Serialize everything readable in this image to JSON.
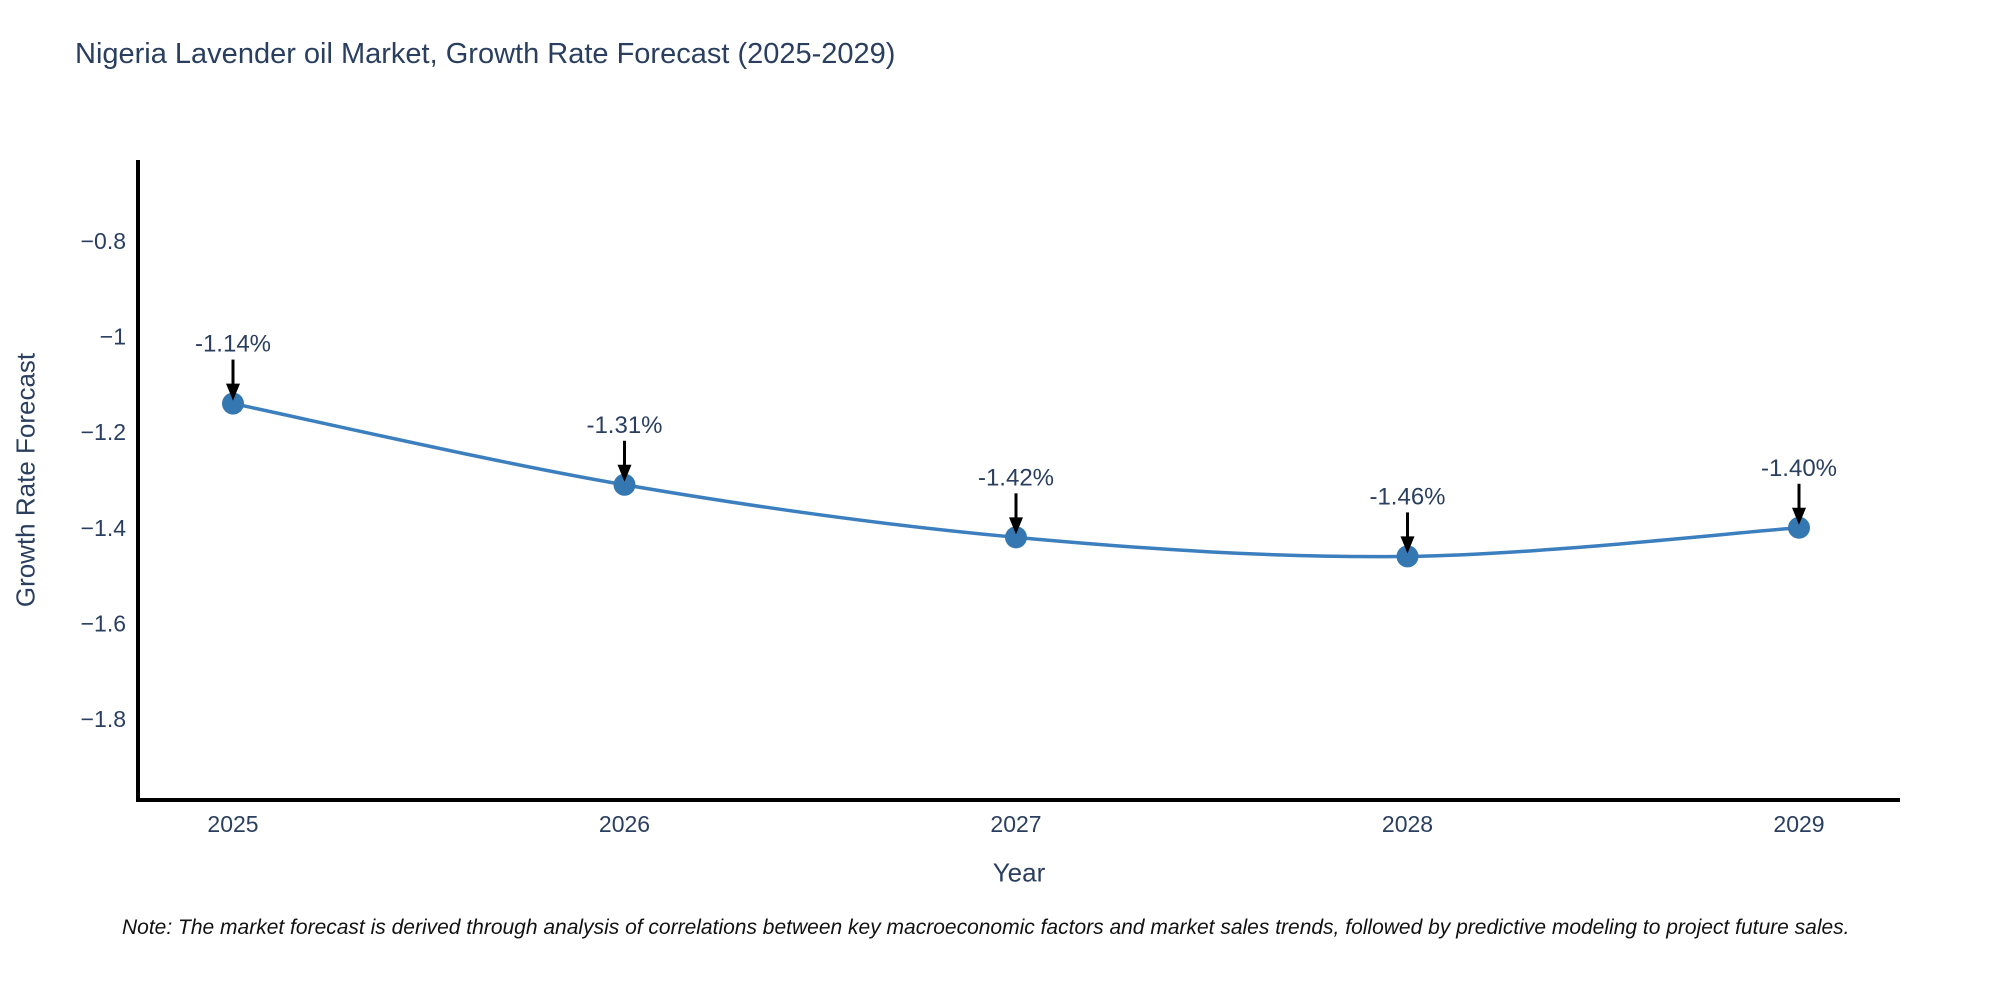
{
  "chart_data": {
    "type": "line",
    "title": "Nigeria Lavender oil Market, Growth Rate Forecast (2025-2029)",
    "xlabel": "Year",
    "ylabel": "Growth Rate Forecast",
    "x": [
      2025,
      2026,
      2027,
      2028,
      2029
    ],
    "x_tick_labels": [
      "2025",
      "2026",
      "2027",
      "2028",
      "2029"
    ],
    "values": [
      -1.14,
      -1.31,
      -1.42,
      -1.46,
      -1.4
    ],
    "point_labels": [
      "-1.14%",
      "-1.31%",
      "-1.42%",
      "-1.46%",
      "-1.40%"
    ],
    "y_ticks": [
      -0.8,
      -1.0,
      -1.2,
      -1.4,
      -1.6,
      -1.8
    ],
    "y_tick_labels": [
      "−0.8",
      "−1",
      "−1.2",
      "−1.4",
      "−1.6",
      "−1.8"
    ],
    "ylim": [
      -1.97,
      -0.63
    ],
    "grid": false,
    "legend": false,
    "line_shape": "spline",
    "line_color": "#3c7fbe",
    "marker_color": "#3577b1",
    "axis_color": "#000000",
    "text_color": "#2a3f5f",
    "annotation_arrow_color": "#000000"
  },
  "note": {
    "text": "Note: The market forecast is derived through analysis of correlations between key macroeconomic factors and market sales trends, followed by predictive modeling to project future sales."
  }
}
